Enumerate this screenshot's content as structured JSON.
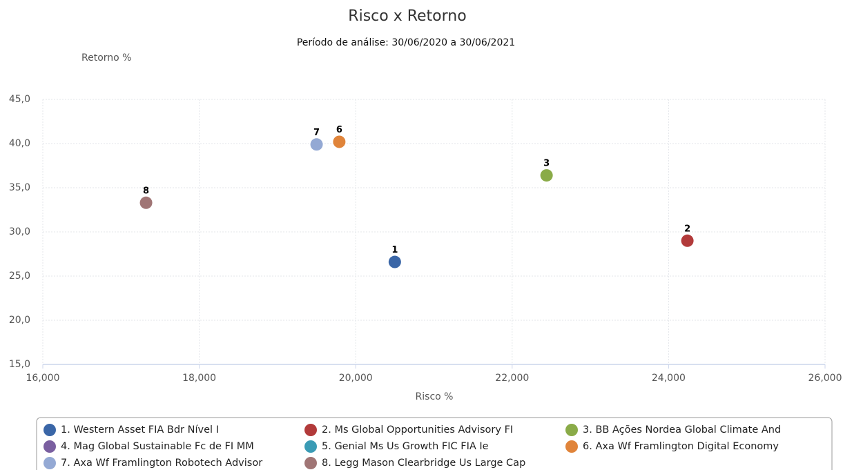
{
  "chart_data": {
    "type": "scatter",
    "title": "Risco x Retorno",
    "subtitle": "Período de análise: 30/06/2020 a 30/06/2021",
    "y_label": "Retorno %",
    "x_label": "Risco %",
    "xlim": [
      16,
      26
    ],
    "xticks": [
      {
        "value": 16,
        "label": "16,000"
      },
      {
        "value": 18,
        "label": "18,000"
      },
      {
        "value": 20,
        "label": "20,000"
      },
      {
        "value": 22,
        "label": "22,000"
      },
      {
        "value": 24,
        "label": "24,000"
      },
      {
        "value": 26,
        "label": "26,000"
      }
    ],
    "ylim": [
      15,
      45
    ],
    "yticks": [
      {
        "value": 15,
        "label": "15,0"
      },
      {
        "value": 20,
        "label": "20,0"
      },
      {
        "value": 25,
        "label": "25,0"
      },
      {
        "value": 30,
        "label": "30,0"
      },
      {
        "value": 35,
        "label": "35,0"
      },
      {
        "value": 40,
        "label": "40,0"
      },
      {
        "value": 45,
        "label": "45,0"
      }
    ],
    "grid": true,
    "legend": "bottom",
    "series": [
      {
        "name": "1. Western Asset FIA Bdr Nível I",
        "color": "#3a66a7",
        "x": [
          20.5
        ],
        "y": [
          26.6
        ],
        "labels": [
          "1"
        ]
      },
      {
        "name": "2. Ms Global Opportunities Advisory FI",
        "color": "#b23a3a",
        "x": [
          24.24
        ],
        "y": [
          29.0
        ],
        "labels": [
          "2"
        ]
      },
      {
        "name": "3. BB Ações Nordea Global Climate And",
        "color": "#8aab48",
        "x": [
          22.44
        ],
        "y": [
          36.4
        ],
        "labels": [
          "3"
        ]
      },
      {
        "name": "4. Mag Global Sustainable Fc de FI MM",
        "color": "#7a5fa0",
        "x": [],
        "y": [],
        "labels": []
      },
      {
        "name": "5. Genial Ms Us Growth FIC FIA Ie",
        "color": "#3a9bb5",
        "x": [],
        "y": [],
        "labels": []
      },
      {
        "name": "6. Axa Wf Framlington Digital Economy",
        "color": "#e0843a",
        "x": [
          19.79
        ],
        "y": [
          40.2
        ],
        "labels": [
          "6"
        ]
      },
      {
        "name": "7. Axa Wf Framlington Robotech Advisor",
        "color": "#94a9d4",
        "x": [
          19.5
        ],
        "y": [
          39.9
        ],
        "labels": [
          "7"
        ]
      },
      {
        "name": "8. Legg Mason Clearbridge Us Large Cap",
        "color": "#a07575",
        "x": [
          17.32
        ],
        "y": [
          33.3
        ],
        "labels": [
          "8"
        ]
      }
    ]
  }
}
